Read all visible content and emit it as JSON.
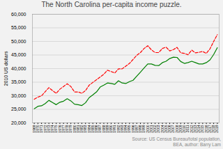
{
  "chart_data": {
    "type": "line",
    "title": "The North Carolina per-capita income puzzle.",
    "ylabel": "2010 US dollars",
    "annotations": [
      "Source: US Census Bureau/total population,\nBEA, author: Barry Lam"
    ],
    "x": [
      1969,
      1970,
      1971,
      1972,
      1973,
      1974,
      1975,
      1976,
      1977,
      1978,
      1979,
      1980,
      1981,
      1982,
      1983,
      1984,
      1985,
      1986,
      1987,
      1988,
      1989,
      1990,
      1991,
      1992,
      1993,
      1994,
      1995,
      1996,
      1997,
      1998,
      1999,
      2000,
      2001,
      2002,
      2003,
      2004,
      2005,
      2006,
      2007,
      2008,
      2009,
      2010,
      2011,
      2012,
      2013,
      2014,
      2015,
      2016,
      2017,
      2018,
      2019
    ],
    "series": [
      {
        "color": "#008000",
        "line_style": "solid",
        "values": [
          25200,
          26100,
          26300,
          27100,
          28300,
          27500,
          26700,
          27600,
          28000,
          28900,
          28100,
          26900,
          26700,
          26400,
          27400,
          29300,
          30300,
          31400,
          33200,
          33900,
          34700,
          34500,
          34200,
          35500,
          34700,
          34500,
          35200,
          35700,
          37200,
          38700,
          40200,
          41700,
          41700,
          41200,
          41100,
          42200,
          42700,
          43700,
          44200,
          44100,
          42600,
          41900,
          42200,
          42700,
          42200,
          41700,
          41700,
          42200,
          43200,
          45200,
          47700
        ]
      },
      {
        "color": "#ff0000",
        "line_style": "dashed",
        "values": [
          28700,
          29500,
          30000,
          31500,
          33000,
          31900,
          30900,
          32400,
          33400,
          34400,
          33400,
          31400,
          31400,
          30900,
          31900,
          33900,
          34900,
          35900,
          36900,
          37900,
          39400,
          38900,
          38400,
          39900,
          39900,
          40900,
          41900,
          43400,
          44900,
          45900,
          47400,
          48400,
          46900,
          45900,
          45900,
          47400,
          47900,
          46500,
          47000,
          47800,
          45800,
          45600,
          45100,
          46800,
          45800,
          46000,
          46300,
          45600,
          47300,
          50000,
          52500
        ]
      }
    ],
    "xlim": [
      1968.5,
      2019.5
    ],
    "xticks": [
      1969,
      1970,
      1971,
      1972,
      1973,
      1974,
      1975,
      1976,
      1977,
      1978,
      1979,
      1980,
      1981,
      1982,
      1983,
      1984,
      1985,
      1986,
      1987,
      1988,
      1989,
      1990,
      1991,
      1992,
      1993,
      1994,
      1995,
      1996,
      1997,
      1998,
      1999,
      2000,
      2001,
      2002,
      2003,
      2004,
      2005,
      2006,
      2007,
      2008,
      2009,
      2010,
      2011,
      2012,
      2013,
      2014,
      2015,
      2016,
      2017,
      2018,
      2019
    ],
    "ylim": [
      20000,
      60000
    ],
    "yticks": [
      {
        "value": 20000,
        "label": "20,000"
      },
      {
        "value": 25000,
        "label": "25,000"
      },
      {
        "value": 30000,
        "label": "30,000"
      },
      {
        "value": 35000,
        "label": "35,000"
      },
      {
        "value": 40000,
        "label": "40,000"
      },
      {
        "value": 45000,
        "label": "45,000"
      },
      {
        "value": 50000,
        "label": "50,000"
      },
      {
        "value": 55000,
        "label": "55,000"
      },
      {
        "value": 60000,
        "label": "60,000"
      }
    ],
    "grid": true
  }
}
